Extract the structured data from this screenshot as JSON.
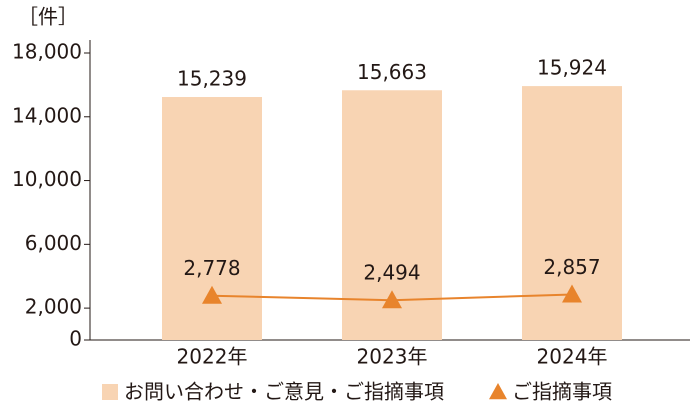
{
  "chart_data": {
    "type": "combo",
    "y_label": "［件］",
    "categories": [
      "2022年",
      "2023年",
      "2024年"
    ],
    "series": [
      {
        "name": "お問い合わせ・ご意見・ご指摘事項",
        "type": "bar",
        "color": "#f8d4b3",
        "values": [
          15239,
          15663,
          15924
        ],
        "value_labels": [
          "15,239",
          "15,663",
          "15,924"
        ]
      },
      {
        "name": "ご指摘事項",
        "type": "line",
        "color": "#e8842c",
        "values": [
          2778,
          2494,
          2857
        ],
        "value_labels": [
          "2,778",
          "2,494",
          "2,857"
        ]
      }
    ],
    "ylim": [
      0,
      18000
    ],
    "yticks": [
      0,
      {
        "value": 2000,
        "label": "2,000"
      },
      {
        "value": 6000,
        "label": "6,000"
      },
      {
        "value": 10000,
        "label": "10,000"
      },
      {
        "value": 14000,
        "label": "14,000"
      },
      {
        "value": 18000,
        "label": "18,000"
      }
    ],
    "grid": false
  }
}
